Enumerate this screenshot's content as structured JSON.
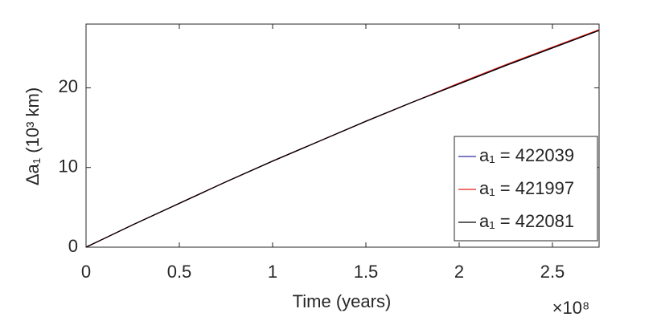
{
  "chart_data": {
    "type": "line",
    "x_label": "Time (years)",
    "x_multiplier": "×10⁸",
    "y_label": "Δa₁ (10³ km)",
    "x": [
      0,
      0.25,
      0.5,
      0.75,
      1,
      1.25,
      1.5,
      1.75,
      2,
      2.25,
      2.5,
      2.75
    ],
    "series": [
      {
        "name": "a₁ = 422039",
        "color": "#2e2e9e",
        "values": [
          0,
          2.8,
          5.5,
          8.2,
          10.8,
          13.3,
          15.8,
          18.2,
          20.5,
          22.8,
          25.0,
          27.2
        ]
      },
      {
        "name": "a₁ = 421997",
        "color": "#e02020",
        "values": [
          0,
          2.8,
          5.5,
          8.2,
          10.8,
          13.3,
          15.8,
          18.2,
          20.6,
          22.9,
          25.1,
          27.3
        ]
      },
      {
        "name": "a₁ = 422081",
        "color": "#000000",
        "values": [
          0,
          2.8,
          5.5,
          8.2,
          10.8,
          13.3,
          15.8,
          18.2,
          20.5,
          22.8,
          25.0,
          27.2
        ]
      }
    ],
    "xlim": [
      0,
      2.75
    ],
    "xticks": [
      0,
      0.5,
      1,
      1.5,
      2,
      2.5
    ],
    "ylim": [
      0,
      28
    ],
    "yticks": [
      0,
      10,
      20
    ],
    "grid": false,
    "legend": "lower right"
  }
}
